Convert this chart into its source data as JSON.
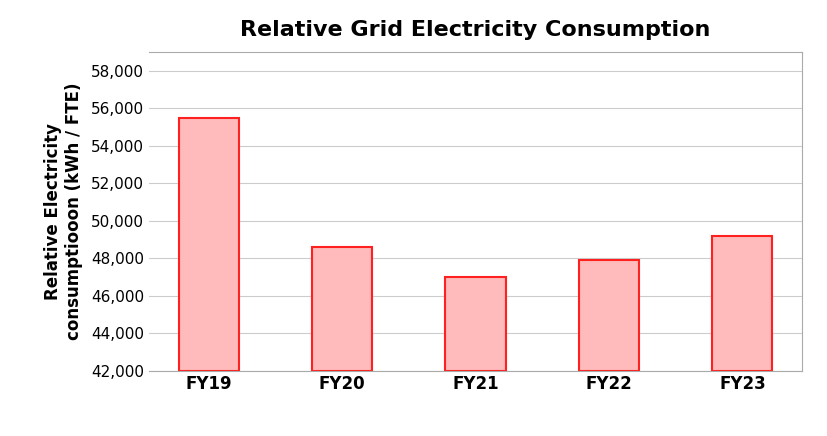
{
  "title": "Relative Grid Electricity Consumption",
  "categories": [
    "FY19",
    "FY20",
    "FY21",
    "FY22",
    "FY23"
  ],
  "values": [
    55500,
    48600,
    47000,
    47900,
    49200
  ],
  "bar_face_color": "#FFBBBB",
  "bar_edge_color": "#FF2020",
  "ylabel_line1": "Relative Electricity",
  "ylabel_line2": "consumptiooon (kWh / FTE)",
  "ylim": [
    42000,
    59000
  ],
  "yticks": [
    42000,
    44000,
    46000,
    48000,
    50000,
    52000,
    54000,
    56000,
    58000
  ],
  "title_fontsize": 16,
  "ylabel_fontsize": 12,
  "tick_fontsize": 11,
  "xtick_fontsize": 12,
  "background_color": "#ffffff",
  "grid_color": "#cccccc",
  "bar_width": 0.45,
  "figsize": [
    8.27,
    4.36
  ],
  "dpi": 100
}
